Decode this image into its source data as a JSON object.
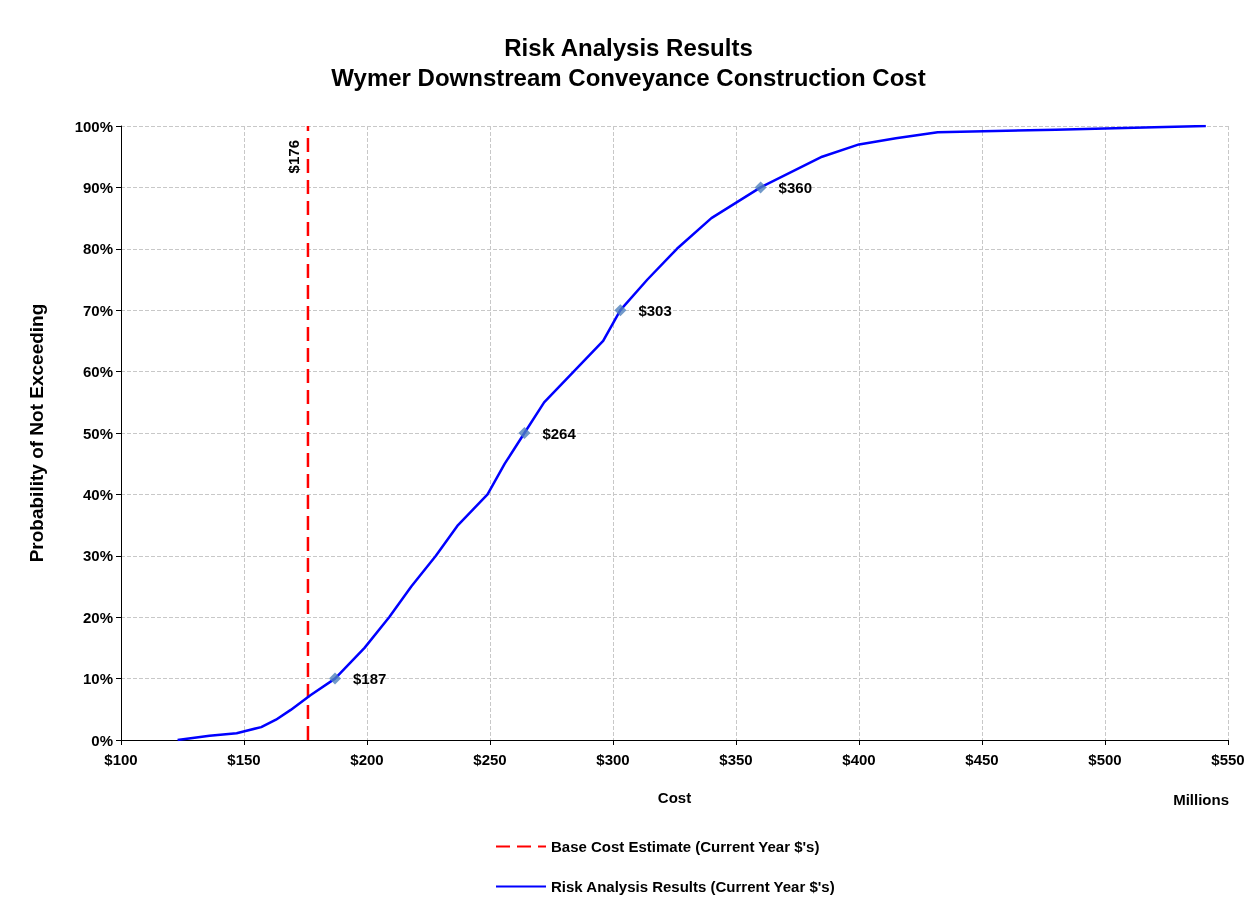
{
  "chart_data": {
    "type": "line",
    "title": "Risk Analysis Results",
    "subtitle": "Wymer Downstream Conveyance Construction Cost",
    "xlabel": "Cost",
    "ylabel": "Probability of Not Exceeding",
    "annotations": [
      "Millions",
      {
        "text": "$176",
        "x": 176,
        "y": 95
      },
      {
        "text": "$187",
        "x": 187,
        "y": 10
      },
      {
        "text": "$264",
        "x": 264,
        "y": 50
      },
      {
        "text": "$303",
        "x": 303,
        "y": 70
      },
      {
        "text": "$360",
        "x": 360,
        "y": 90
      }
    ],
    "xlim": [
      100,
      550
    ],
    "xticks": [
      {
        "value": 100,
        "label": "$100"
      },
      {
        "value": 150,
        "label": "$150"
      },
      {
        "value": 200,
        "label": "$200"
      },
      {
        "value": 250,
        "label": "$250"
      },
      {
        "value": 300,
        "label": "$300"
      },
      {
        "value": 350,
        "label": "$350"
      },
      {
        "value": 400,
        "label": "$400"
      },
      {
        "value": 450,
        "label": "$450"
      },
      {
        "value": 500,
        "label": "$500"
      },
      {
        "value": 550,
        "label": "$550"
      }
    ],
    "ylim": [
      0,
      100
    ],
    "yticks": [
      {
        "value": 0,
        "label": "0%"
      },
      {
        "value": 10,
        "label": "10%"
      },
      {
        "value": 20,
        "label": "20%"
      },
      {
        "value": 30,
        "label": "30%"
      },
      {
        "value": 40,
        "label": "40%"
      },
      {
        "value": 50,
        "label": "50%"
      },
      {
        "value": 60,
        "label": "60%"
      },
      {
        "value": 70,
        "label": "70%"
      },
      {
        "value": 80,
        "label": "80%"
      },
      {
        "value": 90,
        "label": "90%"
      },
      {
        "value": 100,
        "label": "100%"
      }
    ],
    "grid": true,
    "legend": "bottom",
    "series": [
      {
        "name": "Base Cost Estimate (Current Year $'s)",
        "color": "#ff0000",
        "line_style": "dashed",
        "marker": "none",
        "x": [
          176,
          176
        ],
        "values": [
          0,
          100
        ]
      },
      {
        "name": "Risk Analysis Results (Current Year $'s)",
        "color": "#0000ff",
        "line_style": "solid",
        "marker": "none",
        "x": [
          123,
          136,
          147,
          157,
          163,
          169,
          177,
          187,
          199,
          209,
          218,
          228,
          237,
          249,
          256,
          264,
          272,
          284,
          296,
          303,
          314,
          326,
          340,
          360,
          385,
          400,
          415,
          432,
          480,
          520,
          541
        ],
        "values": [
          0,
          0.7,
          1.1,
          2.1,
          3.3,
          4.9,
          7.3,
          10,
          15,
          20,
          25,
          30,
          35,
          40,
          45,
          50,
          55,
          60,
          65,
          70,
          75,
          80,
          85,
          90,
          95,
          97,
          98,
          99,
          99.4,
          99.8,
          100
        ]
      },
      {
        "type": "scatter",
        "color": "#4f81bd",
        "marker": "diamond",
        "x": [
          187,
          264,
          303,
          360
        ],
        "values": [
          10,
          50,
          70,
          90
        ]
      }
    ]
  }
}
